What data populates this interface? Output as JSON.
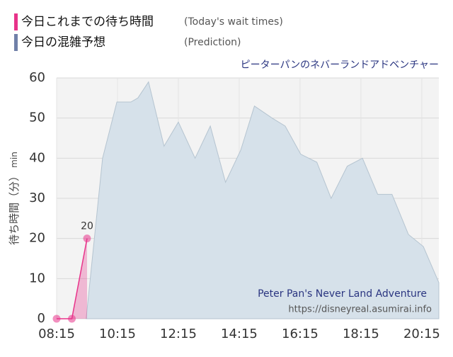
{
  "chart_data": {
    "type": "area",
    "title": "ピーターパンのネバーランドアドベンチャー",
    "y_label": "待ち時間（分）",
    "y_unit": "min",
    "watermark": [
      "Peter Pan's Never Land Adventure",
      "https://disneyreal.asumirai.info"
    ],
    "series": [
      {
        "name": "今日これまでの待ち時間",
        "desc": "(Today's wait times)",
        "color": "#e8338a",
        "x": [
          8.25,
          8.75,
          9.25
        ],
        "values": [
          0,
          0,
          20
        ]
      },
      {
        "name": "今日の混雑予想",
        "desc": "(Prediction)",
        "color": "#7080a8",
        "x": [
          9.22,
          9.76,
          10.23,
          10.69,
          10.92,
          11.27,
          11.78,
          12.25,
          12.8,
          13.3,
          13.8,
          14.3,
          14.75,
          15.33,
          15.76,
          16.27,
          16.8,
          17.27,
          17.8,
          18.3,
          18.8,
          19.27,
          19.81,
          20.3,
          20.81
        ],
        "values": [
          0,
          40,
          54,
          54,
          55,
          59,
          43,
          49,
          40,
          48,
          34,
          42,
          53,
          50,
          48,
          41,
          39,
          30,
          38,
          40,
          31,
          31,
          21,
          18,
          9
        ]
      }
    ],
    "xlim": [
      8.25,
      20.81
    ],
    "xticks": [
      {
        "value": 8.25,
        "label": "08:15"
      },
      {
        "value": 10.25,
        "label": "10:15"
      },
      {
        "value": 12.25,
        "label": "12:15"
      },
      {
        "value": 14.25,
        "label": "14:15"
      },
      {
        "value": 16.25,
        "label": "16:15"
      },
      {
        "value": 18.25,
        "label": "18:15"
      },
      {
        "value": 20.25,
        "label": "20:15"
      }
    ],
    "ylim": [
      0,
      60
    ],
    "yticks": [
      0,
      10,
      20,
      30,
      40,
      50,
      60
    ],
    "grid": true
  }
}
